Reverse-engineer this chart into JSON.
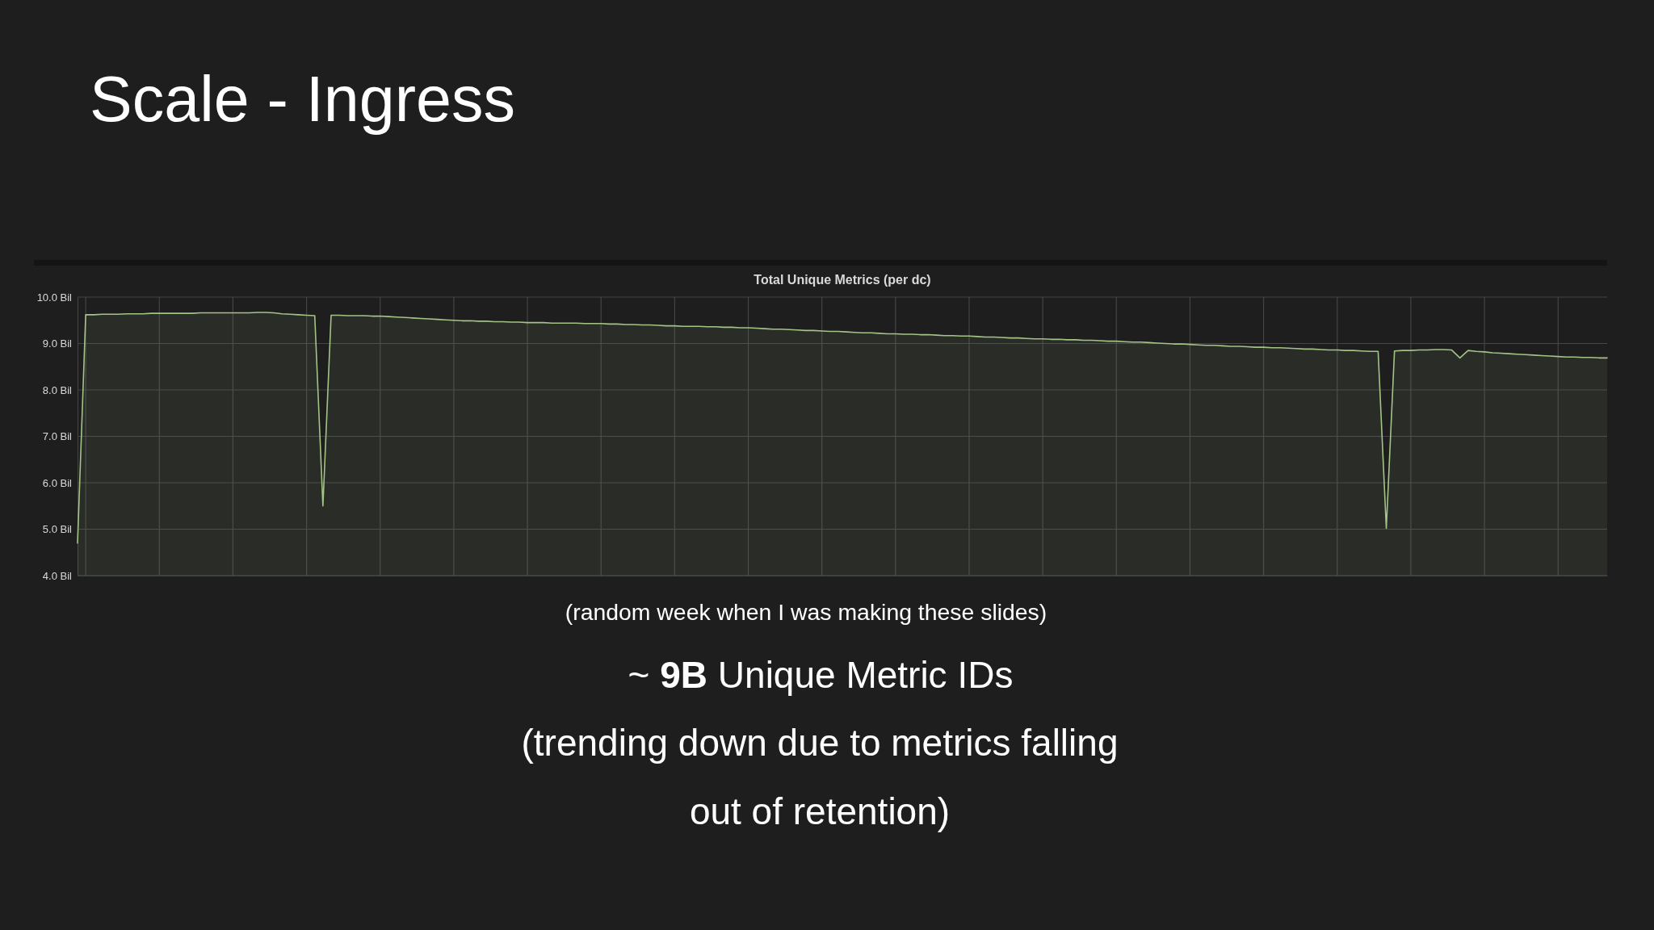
{
  "chart_data": {
    "type": "area",
    "title": "Scale - Ingress",
    "subtitle": "Total Unique Metrics (per dc)",
    "annotations": [
      "(random week when I was making these slides)",
      "~ 9B Unique Metric IDs",
      "(trending down due to metrics falling out of retention)"
    ],
    "categories": [
      null,
      null,
      null,
      null,
      null,
      null,
      null,
      null,
      null,
      null,
      null,
      null,
      null,
      null,
      null,
      null,
      null,
      null,
      null,
      null,
      null,
      null,
      null,
      null,
      null,
      null,
      null,
      null,
      null,
      null,
      null,
      null,
      null,
      null,
      null,
      null,
      null,
      null,
      null,
      null,
      null,
      null,
      null,
      null,
      null,
      null,
      null,
      null,
      null,
      null,
      null,
      null,
      null,
      null,
      null,
      null,
      null,
      null,
      null,
      null,
      null,
      null,
      null,
      null,
      null,
      null,
      null,
      null,
      null,
      null,
      null,
      null,
      null,
      null,
      null,
      null,
      null,
      null,
      null,
      null,
      null,
      null,
      null,
      null,
      null,
      null,
      null,
      null,
      null,
      null,
      null,
      null,
      null,
      null,
      null,
      null,
      null,
      null,
      null,
      null,
      null,
      null,
      null,
      null,
      null,
      null,
      null,
      null,
      null,
      null,
      null,
      null,
      null,
      null,
      null,
      null,
      null,
      null,
      null,
      null,
      null,
      null,
      null,
      null,
      null,
      null,
      null,
      null,
      null,
      null,
      null,
      null,
      null,
      null,
      null,
      null,
      null,
      null,
      null,
      null,
      null,
      null,
      null,
      null,
      null,
      null,
      null,
      null,
      null,
      null,
      null,
      null,
      null,
      null,
      null,
      null,
      null,
      null,
      null,
      null,
      null,
      null,
      null,
      null,
      null,
      null,
      null,
      null,
      null,
      null,
      null,
      null,
      null,
      null,
      null,
      null,
      null,
      null,
      null,
      null,
      null,
      null,
      null,
      null,
      null,
      null,
      null,
      null
    ],
    "values": [
      4.7,
      9.62,
      9.62,
      9.63,
      9.63,
      9.63,
      9.64,
      9.64,
      9.64,
      9.65,
      9.65,
      9.65,
      9.65,
      9.65,
      9.65,
      9.66,
      9.66,
      9.66,
      9.66,
      9.66,
      9.66,
      9.66,
      9.67,
      9.67,
      9.66,
      9.64,
      9.63,
      9.62,
      9.61,
      9.6,
      5.5,
      9.61,
      9.61,
      9.6,
      9.6,
      9.6,
      9.59,
      9.59,
      9.58,
      9.57,
      9.56,
      9.55,
      9.54,
      9.53,
      9.52,
      9.51,
      9.5,
      9.49,
      9.49,
      9.48,
      9.48,
      9.47,
      9.47,
      9.46,
      9.46,
      9.45,
      9.45,
      9.45,
      9.44,
      9.44,
      9.44,
      9.44,
      9.43,
      9.43,
      9.43,
      9.42,
      9.42,
      9.41,
      9.41,
      9.4,
      9.4,
      9.39,
      9.38,
      9.38,
      9.37,
      9.37,
      9.37,
      9.36,
      9.36,
      9.35,
      9.35,
      9.34,
      9.34,
      9.33,
      9.32,
      9.31,
      9.31,
      9.3,
      9.29,
      9.28,
      9.28,
      9.27,
      9.26,
      9.26,
      9.25,
      9.24,
      9.23,
      9.23,
      9.22,
      9.21,
      9.21,
      9.2,
      9.2,
      9.19,
      9.19,
      9.18,
      9.17,
      9.17,
      9.16,
      9.16,
      9.15,
      9.14,
      9.14,
      9.13,
      9.12,
      9.12,
      9.11,
      9.1,
      9.1,
      9.09,
      9.09,
      9.08,
      9.08,
      9.07,
      9.07,
      9.06,
      9.05,
      9.05,
      9.04,
      9.03,
      9.03,
      9.02,
      9.01,
      9.0,
      8.99,
      8.99,
      8.98,
      8.97,
      8.96,
      8.96,
      8.95,
      8.94,
      8.94,
      8.93,
      8.92,
      8.92,
      8.91,
      8.91,
      8.9,
      8.89,
      8.88,
      8.88,
      8.87,
      8.86,
      8.86,
      8.85,
      8.85,
      8.84,
      8.83,
      8.83,
      5.02,
      8.84,
      8.85,
      8.85,
      8.86,
      8.86,
      8.87,
      8.87,
      8.86,
      8.69,
      8.85,
      8.83,
      8.82,
      8.8,
      8.79,
      8.78,
      8.77,
      8.76,
      8.75,
      8.74,
      8.73,
      8.72,
      8.71,
      8.71,
      8.7,
      8.7,
      8.69,
      8.69
    ],
    "color": "#a3c486",
    "ylim": [
      4,
      10
    ],
    "yticks": [
      {
        "value": 4,
        "label": "4.0 Bil"
      },
      {
        "value": 5,
        "label": "5.0 Bil"
      },
      {
        "value": 6,
        "label": "6.0 Bil"
      },
      {
        "value": 7,
        "label": "7.0 Bil"
      },
      {
        "value": 8,
        "label": "8.0 Bil"
      },
      {
        "value": 9,
        "label": "9.0 Bil"
      },
      {
        "value": 10,
        "label": "10.0 Bil"
      }
    ],
    "grid": true,
    "tick_labels": "y"
  }
}
